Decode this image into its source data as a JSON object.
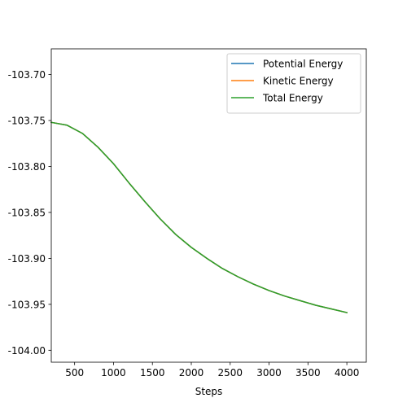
{
  "chart_data": {
    "type": "line",
    "title": "",
    "xlabel": "Steps",
    "ylabel": "",
    "xlim": [
      200,
      4250
    ],
    "ylim": [
      -104.013,
      -103.672
    ],
    "xticks": [
      500,
      1000,
      1500,
      2000,
      2500,
      3000,
      3500,
      4000
    ],
    "xtick_labels": [
      "500",
      "1000",
      "1500",
      "2000",
      "2500",
      "3000",
      "3500",
      "4000"
    ],
    "yticks": [
      -103.7,
      -103.75,
      -103.8,
      -103.85,
      -103.9,
      -103.95,
      -104.0
    ],
    "ytick_labels": [
      "-103.70",
      "-103.75",
      "-103.80",
      "-103.85",
      "-103.90",
      "-103.95",
      "-104.00"
    ],
    "grid": false,
    "legend_position": "top-right",
    "x": [
      200,
      400,
      600,
      800,
      1000,
      1200,
      1400,
      1600,
      1800,
      2000,
      2200,
      2400,
      2600,
      2800,
      3000,
      3200,
      3400,
      3600,
      3800,
      4000
    ],
    "series": [
      {
        "name": "Potential Energy",
        "color": "#1f77b4",
        "values": [
          -103.752,
          -103.755,
          -103.764,
          -103.779,
          -103.797,
          -103.818,
          -103.838,
          -103.857,
          -103.874,
          -103.888,
          -103.9,
          -103.911,
          -103.92,
          -103.928,
          -103.935,
          -103.941,
          -103.946,
          -103.951,
          -103.955,
          -103.959
        ]
      },
      {
        "name": "Kinetic Energy",
        "color": "#ff7f0e",
        "values": [
          -103.752,
          -103.755,
          -103.764,
          -103.779,
          -103.797,
          -103.818,
          -103.838,
          -103.857,
          -103.874,
          -103.888,
          -103.9,
          -103.911,
          -103.92,
          -103.928,
          -103.935,
          -103.941,
          -103.946,
          -103.951,
          -103.955,
          -103.959
        ]
      },
      {
        "name": "Total Energy",
        "color": "#2ca02c",
        "values": [
          -103.752,
          -103.755,
          -103.764,
          -103.779,
          -103.797,
          -103.818,
          -103.838,
          -103.857,
          -103.874,
          -103.888,
          -103.9,
          -103.911,
          -103.92,
          -103.928,
          -103.935,
          -103.941,
          -103.946,
          -103.951,
          -103.955,
          -103.959
        ]
      }
    ]
  }
}
